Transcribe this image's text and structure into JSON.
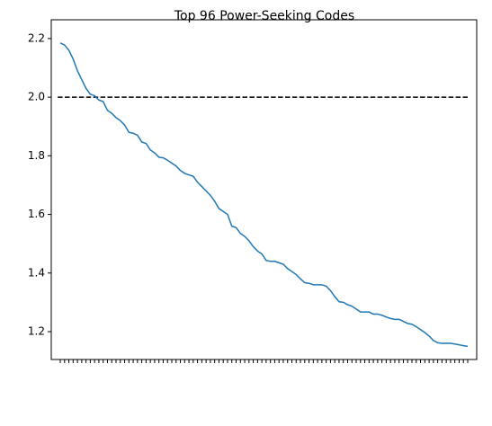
{
  "chart_data": {
    "type": "line",
    "title": "Top 96 Power-Seeking Codes",
    "categories": [
      null,
      null,
      null,
      null,
      null,
      null,
      null,
      null,
      null,
      null,
      null,
      null,
      null,
      null,
      null,
      null,
      null,
      null,
      null,
      null,
      null,
      null,
      null,
      null,
      null,
      null,
      null,
      null,
      null,
      null,
      null,
      null,
      null,
      null,
      null,
      null,
      null,
      null,
      null,
      null,
      null,
      null,
      null,
      null,
      null,
      null,
      null,
      null,
      null,
      null,
      null,
      null,
      null,
      null,
      null,
      null,
      null,
      null,
      null,
      null,
      null,
      null,
      null,
      null,
      null,
      null,
      null,
      null,
      null,
      null,
      null,
      null,
      null,
      null,
      null,
      null,
      null,
      null,
      null,
      null,
      null,
      null,
      null,
      null,
      null,
      null,
      null,
      null,
      null,
      null,
      null,
      null,
      null,
      null,
      null,
      null
    ],
    "values": [
      2.185,
      2.178,
      2.16,
      2.13,
      2.09,
      2.06,
      2.03,
      2.01,
      2.005,
      1.99,
      1.985,
      1.955,
      1.945,
      1.93,
      1.92,
      1.905,
      1.88,
      1.877,
      1.87,
      1.847,
      1.842,
      1.82,
      1.81,
      1.795,
      1.793,
      1.785,
      1.775,
      1.765,
      1.75,
      1.74,
      1.735,
      1.73,
      1.71,
      1.695,
      1.68,
      1.665,
      1.645,
      1.62,
      1.61,
      1.6,
      1.56,
      1.555,
      1.535,
      1.525,
      1.51,
      1.49,
      1.475,
      1.465,
      1.443,
      1.44,
      1.44,
      1.435,
      1.43,
      1.415,
      1.405,
      1.395,
      1.38,
      1.367,
      1.365,
      1.36,
      1.36,
      1.36,
      1.355,
      1.34,
      1.32,
      1.302,
      1.3,
      1.292,
      1.287,
      1.277,
      1.267,
      1.267,
      1.267,
      1.26,
      1.26,
      1.256,
      1.25,
      1.245,
      1.242,
      1.242,
      1.235,
      1.228,
      1.225,
      1.217,
      1.207,
      1.197,
      1.185,
      1.17,
      1.162,
      1.16,
      1.16,
      1.16,
      1.158,
      1.155,
      1.152,
      1.15
    ],
    "color": "#1f77b4",
    "hline": {
      "y": 2,
      "color": "#000000",
      "dashed": true
    },
    "ylim": [
      1.105,
      2.264
    ],
    "yticks": [
      1.2,
      1.4,
      1.6,
      1.8,
      {
        "value": 2,
        "label": "2.0"
      },
      2.2
    ]
  }
}
